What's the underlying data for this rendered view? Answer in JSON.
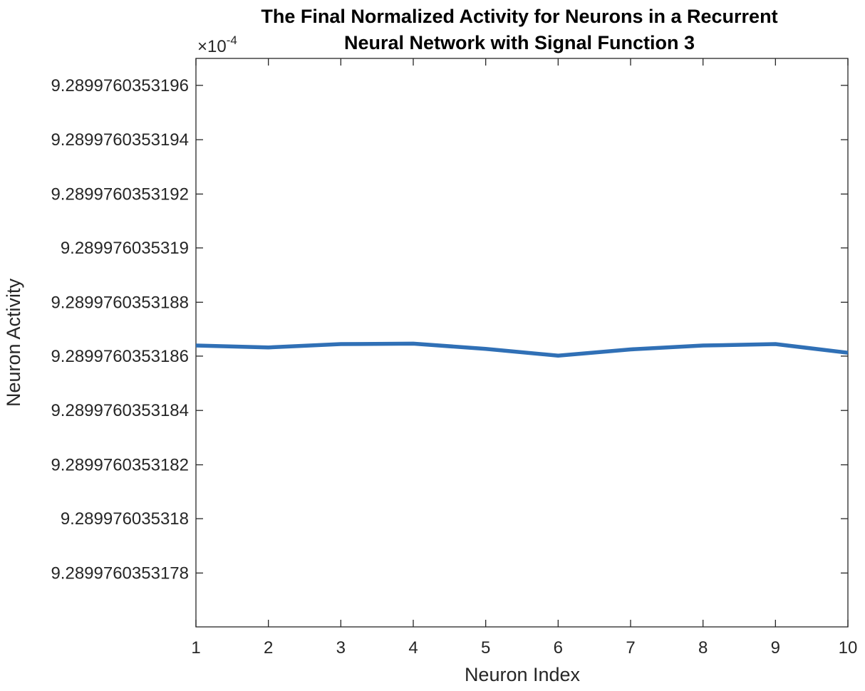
{
  "chart_data": {
    "type": "line",
    "title_lines": [
      "The Final Normalized Activity for Neurons in a Recurrent",
      "Neural Network with Signal Function 3"
    ],
    "xlabel": "Neuron Index",
    "ylabel": "Neuron Activity",
    "y_multiplier": {
      "base": "×10",
      "exponent": "-4"
    },
    "x": [
      1,
      2,
      3,
      4,
      5,
      6,
      7,
      8,
      9,
      10
    ],
    "series": [
      {
        "color": "#3070b6",
        "values": [
          9.28997603531864,
          9.289976035318633,
          9.289976035318645,
          9.289976035318647,
          9.289976035318627,
          9.289976035318602,
          9.289976035318626,
          9.28997603531864,
          9.289976035318645,
          9.289976035318613
        ]
      }
    ],
    "xlim": [
      1,
      10
    ],
    "ylim": [
      9.2899760353176,
      9.2899760353197
    ],
    "x_ticks": [
      1,
      2,
      3,
      4,
      5,
      6,
      7,
      8,
      9,
      10
    ],
    "x_tick_labels": [
      "1",
      "2",
      "3",
      "4",
      "5",
      "6",
      "7",
      "8",
      "9",
      "10"
    ],
    "y_ticks": [
      9.2899760353178,
      9.289976035318,
      9.2899760353182,
      9.2899760353184,
      9.2899760353186,
      9.2899760353188,
      9.289976035319,
      9.2899760353192,
      9.2899760353194,
      9.2899760353196
    ],
    "y_tick_labels": [
      "9.2899760353178",
      "9.289976035318",
      "9.2899760353182",
      "9.2899760353184",
      "9.2899760353186",
      "9.2899760353188",
      "9.289976035319",
      "9.2899760353192",
      "9.2899760353194",
      "9.2899760353196"
    ],
    "grid": false,
    "box": true
  }
}
